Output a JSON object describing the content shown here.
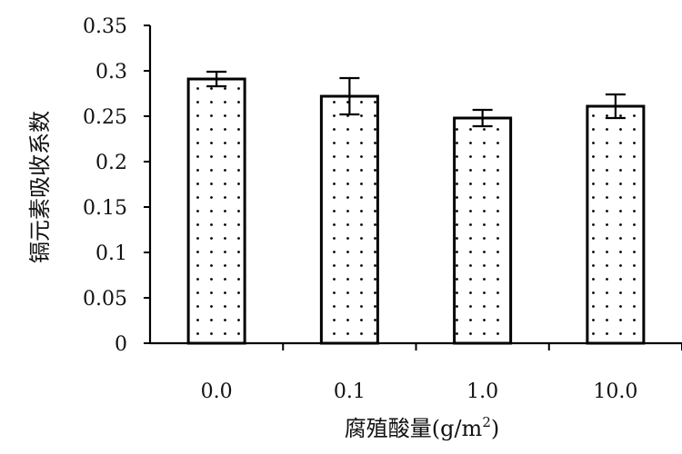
{
  "chart_data": {
    "type": "bar",
    "title": "",
    "xlabel": "腐殖酸量(g/m",
    "xlabel_sup": "2",
    "xlabel_close": ")",
    "ylabel": "镉元素吸收系数",
    "categories": [
      "0.0",
      "0.1",
      "1.0",
      "10.0"
    ],
    "series": [
      {
        "values": [
          0.291,
          0.272,
          0.248,
          0.261
        ],
        "errors": [
          0.008,
          0.02,
          0.009,
          0.013
        ]
      }
    ],
    "ylim": [
      0,
      0.35
    ],
    "yticks": [
      0,
      0.05,
      0.1,
      0.15,
      0.2,
      0.25,
      0.3,
      0.35
    ],
    "ytick_labels": [
      "0",
      "0.05",
      "0.1",
      "0.15",
      "0.2",
      "0.25",
      "0.3",
      "0.35"
    ],
    "grid": false,
    "bar_pattern": "dotted",
    "colors": {
      "bar_fill": "#ffffff",
      "bar_edge": "#000000",
      "dot": "#000000"
    }
  }
}
